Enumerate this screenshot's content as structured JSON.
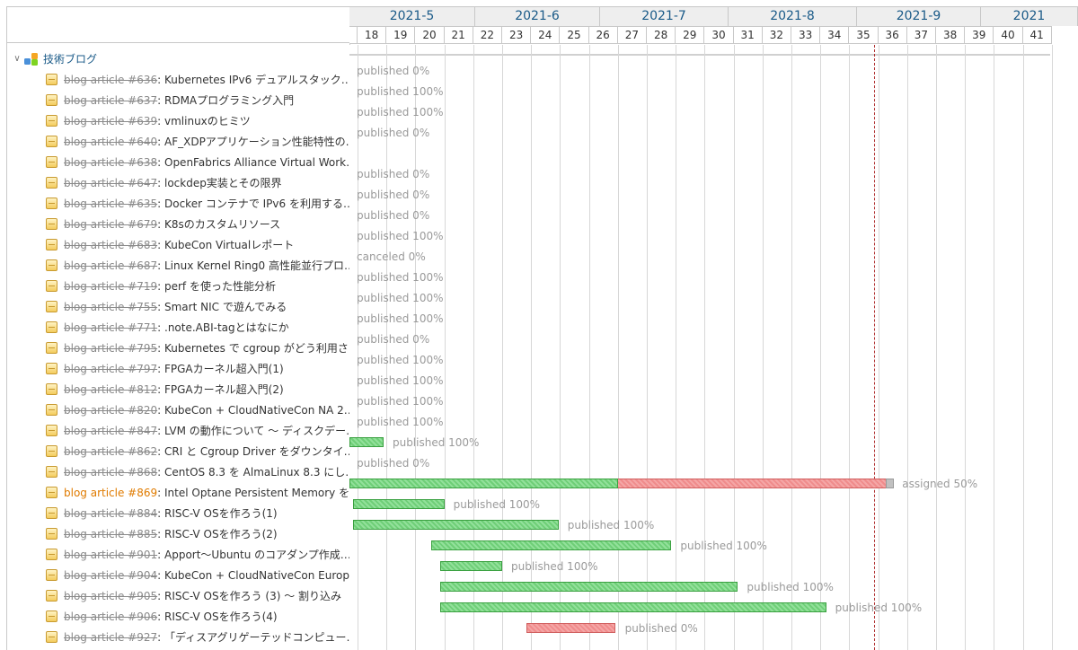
{
  "timeline": {
    "months": [
      {
        "label": "2021-5"
      },
      {
        "label": "2021-6"
      },
      {
        "label": "2021-7"
      },
      {
        "label": "2021-8"
      },
      {
        "label": "2021-9"
      },
      {
        "label": "2021"
      }
    ],
    "weeks": [
      "18",
      "19",
      "20",
      "21",
      "22",
      "23",
      "24",
      "25",
      "26",
      "27",
      "28",
      "29",
      "30",
      "31",
      "32",
      "33",
      "34",
      "35",
      "36",
      "37",
      "38",
      "39",
      "40",
      "41"
    ]
  },
  "project": {
    "name": "技術ブログ",
    "expander_icon": "chevron-down-icon",
    "icon": "project-icon"
  },
  "issues": [
    {
      "ref": "blog article #636",
      "title": ": Kubernetes IPv6 デュアルスタック…",
      "status": "published 0%",
      "closed": true,
      "bar": null
    },
    {
      "ref": "blog article #637",
      "title": ": RDMAプログラミング入門",
      "status": "published 100%",
      "closed": true,
      "bar": null
    },
    {
      "ref": "blog article #639",
      "title": ": vmlinuxのヒミツ",
      "status": "published 100%",
      "closed": true,
      "bar": null
    },
    {
      "ref": "blog article #640",
      "title": ": AF_XDPアプリケーション性能特性の…",
      "status": "published 0%",
      "closed": true,
      "bar": null
    },
    {
      "ref": "blog article #638",
      "title": ": OpenFabrics Alliance Virtual Work…",
      "status": "",
      "closed": true,
      "bar": null
    },
    {
      "ref": "blog article #647",
      "title": ": lockdep実装とその限界",
      "status": "published 0%",
      "closed": true,
      "bar": null
    },
    {
      "ref": "blog article #635",
      "title": ": Docker コンテナで IPv6 を利用する…",
      "status": "published 0%",
      "closed": true,
      "bar": null
    },
    {
      "ref": "blog article #679",
      "title": ": K8sのカスタムリソース",
      "status": "published 0%",
      "closed": true,
      "bar": null
    },
    {
      "ref": "blog article #683",
      "title": ": KubeCon Virtualレポート",
      "status": "published 100%",
      "closed": true,
      "bar": null
    },
    {
      "ref": "blog article #687",
      "title": ": Linux Kernel Ring0 高性能並行プロ…",
      "status": "canceled 0%",
      "closed": true,
      "bar": null
    },
    {
      "ref": "blog article #719",
      "title": ": perf を使った性能分析",
      "status": "published 100%",
      "closed": true,
      "bar": null
    },
    {
      "ref": "blog article #755",
      "title": ": Smart NIC で遊んでみる",
      "status": "published 100%",
      "closed": true,
      "bar": null
    },
    {
      "ref": "blog article #771",
      "title": ": .note.ABI-tagとはなにか",
      "status": "published 100%",
      "closed": true,
      "bar": null
    },
    {
      "ref": "blog article #795",
      "title": ": Kubernetes で cgroup がどう利用さ…",
      "status": "published 0%",
      "closed": true,
      "bar": null
    },
    {
      "ref": "blog article #797",
      "title": ": FPGAカーネル超入門(1)",
      "status": "published 100%",
      "closed": true,
      "bar": null
    },
    {
      "ref": "blog article #812",
      "title": ": FPGAカーネル超入門(2)",
      "status": "published 100%",
      "closed": true,
      "bar": null
    },
    {
      "ref": "blog article #820",
      "title": ": KubeCon + CloudNativeCon NA 2…",
      "status": "published 100%",
      "closed": true,
      "bar": null
    },
    {
      "ref": "blog article #847",
      "title": ": LVM の動作について 〜 ディスクデー…",
      "status": "published 100%",
      "closed": true,
      "bar": null
    },
    {
      "ref": "blog article #862",
      "title": ": CRI と Cgroup Driver をダウンタイ…",
      "status": "published 100%",
      "closed": true,
      "bar": {
        "start_week": 17.0,
        "end_week": 18.9,
        "done_ratio": 1.0
      }
    },
    {
      "ref": "blog article #868",
      "title": ": CentOS 8.3 を AlmaLinux 8.3 にし…",
      "status": "published 0%",
      "closed": true,
      "bar": null
    },
    {
      "ref": "blog article #869",
      "title": ": Intel Optane Persistent Memory を…",
      "status": "assigned 50%",
      "closed": false,
      "bar": {
        "start_week": 17.0,
        "end_week": 36.3,
        "done_ratio": 0.5,
        "overdue": true
      }
    },
    {
      "ref": "blog article #884",
      "title": ": RISC-V OSを作ろう(1)",
      "status": "published 100%",
      "closed": true,
      "bar": {
        "start_week": 17.85,
        "end_week": 21.0,
        "done_ratio": 1.0
      }
    },
    {
      "ref": "blog article #885",
      "title": ": RISC-V OSを作ろう(2)",
      "status": "published 100%",
      "closed": true,
      "bar": {
        "start_week": 17.85,
        "end_week": 24.95,
        "done_ratio": 1.0
      }
    },
    {
      "ref": "blog article #901",
      "title": ": Apport〜Ubuntu のコアダンプ作成…",
      "status": "published 100%",
      "closed": true,
      "bar": {
        "start_week": 20.55,
        "end_week": 28.85,
        "done_ratio": 1.0
      }
    },
    {
      "ref": "blog article #904",
      "title": ": KubeCon + CloudNativeCon Europ…",
      "status": "published 100%",
      "closed": true,
      "bar": {
        "start_week": 20.85,
        "end_week": 23.0,
        "done_ratio": 1.0
      }
    },
    {
      "ref": "blog article #905",
      "title": ": RISC-V OSを作ろう (3) 〜 割り込み",
      "status": "published 100%",
      "closed": true,
      "bar": {
        "start_week": 20.85,
        "end_week": 31.15,
        "done_ratio": 1.0
      }
    },
    {
      "ref": "blog article #906",
      "title": ": RISC-V OSを作ろう(4)",
      "status": "published 100%",
      "closed": true,
      "bar": {
        "start_week": 20.85,
        "end_week": 34.2,
        "done_ratio": 1.0
      }
    },
    {
      "ref": "blog article #927",
      "title": ": 「ディスアグリゲーテッドコンピュー…",
      "status": "published 0%",
      "closed": true,
      "bar": {
        "start_week": 23.85,
        "end_week": 26.9,
        "done_ratio": 0.0,
        "overdue": true
      }
    }
  ],
  "today_week": 35.85
}
